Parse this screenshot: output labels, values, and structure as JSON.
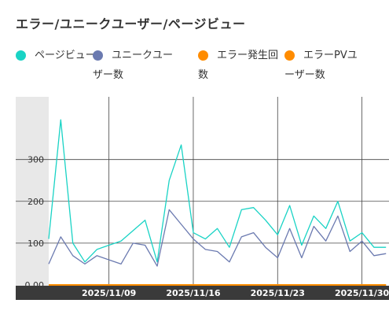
{
  "header": {
    "title": "エラー/ユニークユーザー/ページビュー"
  },
  "legend": [
    {
      "label": "ページビュー",
      "color": "#19d3c5"
    },
    {
      "label": "ユニークユーザー数",
      "color": "#6b7ab0"
    },
    {
      "label": "エラー発生回数",
      "color": "#ff8c00"
    },
    {
      "label": "エラーPVユーザー数",
      "color": "#ff8c00"
    }
  ],
  "chart_data": {
    "type": "line",
    "y_ticks": [
      "0.00",
      "100",
      "200",
      "300"
    ],
    "ylim": [
      0,
      450
    ],
    "x_tick_labels": [
      "2025/11/09",
      "2025/11/16",
      "2025/11/23",
      "2025/11/30"
    ],
    "x": [
      "2025/11/04",
      "2025/11/05",
      "2025/11/06",
      "2025/11/07",
      "2025/11/08",
      "2025/11/09",
      "2025/11/10",
      "2025/11/11",
      "2025/11/12",
      "2025/11/13",
      "2025/11/14",
      "2025/11/15",
      "2025/11/16",
      "2025/11/17",
      "2025/11/18",
      "2025/11/19",
      "2025/11/20",
      "2025/11/21",
      "2025/11/22",
      "2025/11/23",
      "2025/11/24",
      "2025/11/25",
      "2025/11/26",
      "2025/11/27",
      "2025/11/28",
      "2025/11/29",
      "2025/11/30",
      "2025/12/01",
      "2025/12/02"
    ],
    "series": [
      {
        "name": "ページビュー",
        "color": "#19d3c5",
        "values": [
          110,
          395,
          100,
          55,
          85,
          95,
          105,
          130,
          155,
          55,
          250,
          335,
          125,
          110,
          135,
          90,
          180,
          185,
          155,
          120,
          190,
          95,
          165,
          135,
          200,
          105,
          125,
          90,
          90
        ]
      },
      {
        "name": "ユニークユーザー数",
        "color": "#6b7ab0",
        "values": [
          50,
          115,
          70,
          50,
          70,
          60,
          50,
          100,
          95,
          45,
          180,
          145,
          110,
          85,
          80,
          55,
          115,
          125,
          90,
          65,
          135,
          65,
          140,
          105,
          165,
          80,
          105,
          70,
          75
        ]
      },
      {
        "name": "エラー発生回数",
        "color": "#ff8c00",
        "values": [
          0,
          0,
          0,
          0,
          0,
          0,
          0,
          0,
          0,
          0,
          0,
          0,
          0,
          0,
          0,
          0,
          0,
          0,
          0,
          0,
          0,
          0,
          0,
          0,
          0,
          0,
          0,
          0,
          0
        ]
      },
      {
        "name": "エラーPVユーザー数",
        "color": "#ff8c00",
        "values": [
          0,
          0,
          0,
          0,
          0,
          0,
          0,
          0,
          0,
          0,
          0,
          0,
          0,
          0,
          0,
          0,
          0,
          0,
          0,
          0,
          0,
          0,
          0,
          0,
          0,
          0,
          0,
          0,
          0
        ]
      }
    ],
    "grid": true
  }
}
